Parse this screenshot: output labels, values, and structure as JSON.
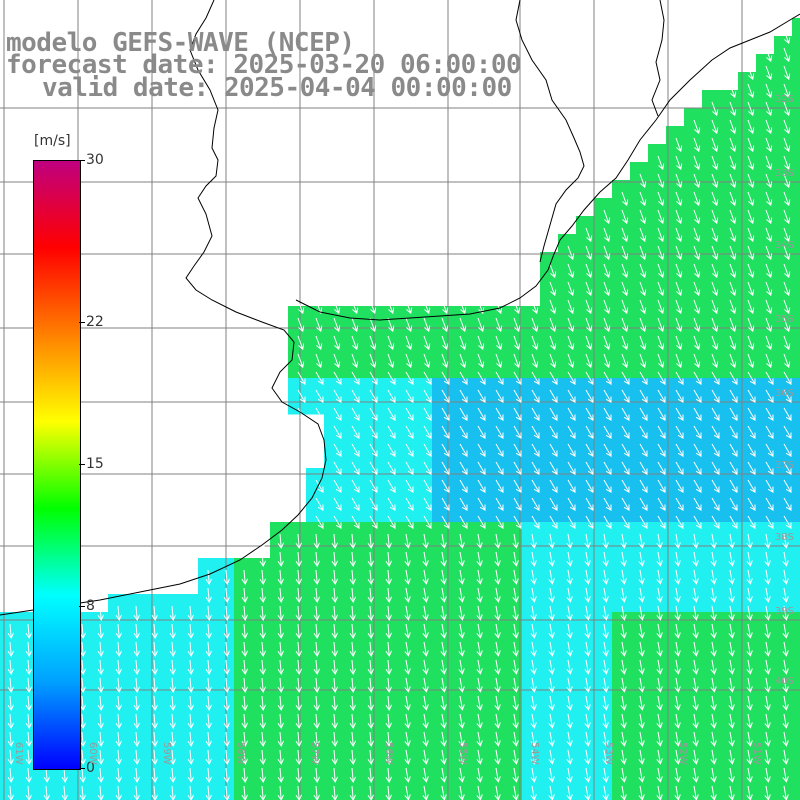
{
  "title": {
    "line1": "modelo GEFS-WAVE (NCEP)",
    "line2": "forecast date: 2025-03-20 06:00:00",
    "line3": "valid date: 2025-04-04 00:00:00"
  },
  "colorbar": {
    "unit": "[m/s]",
    "ticks": [
      "30",
      "22",
      "15",
      "8",
      "0"
    ],
    "tick_values": [
      30,
      22,
      15,
      8,
      0
    ],
    "range": [
      0,
      30
    ],
    "colors": [
      "#0000ff",
      "#00a0ff",
      "#00ffff",
      "#00ff00",
      "#ffff00",
      "#ff8000",
      "#ff0000",
      "#c00080"
    ]
  },
  "grid": {
    "lat_labels": [
      "32S",
      "33S",
      "34S",
      "35S",
      "36S",
      "37S",
      "38S",
      "39S",
      "40S"
    ],
    "lon_labels": [
      "61W",
      "60W",
      "59W",
      "58W",
      "57W",
      "56W",
      "55W",
      "54W",
      "53W",
      "52W",
      "51W"
    ]
  },
  "map_colors": {
    "land": "#ffffff",
    "coast": "#000000",
    "gridline": "#808080",
    "arrow": "#ffffff",
    "ocean_green": "#20e060",
    "ocean_cyan": "#20f0f0",
    "ocean_blue": "#18c0f0"
  }
}
